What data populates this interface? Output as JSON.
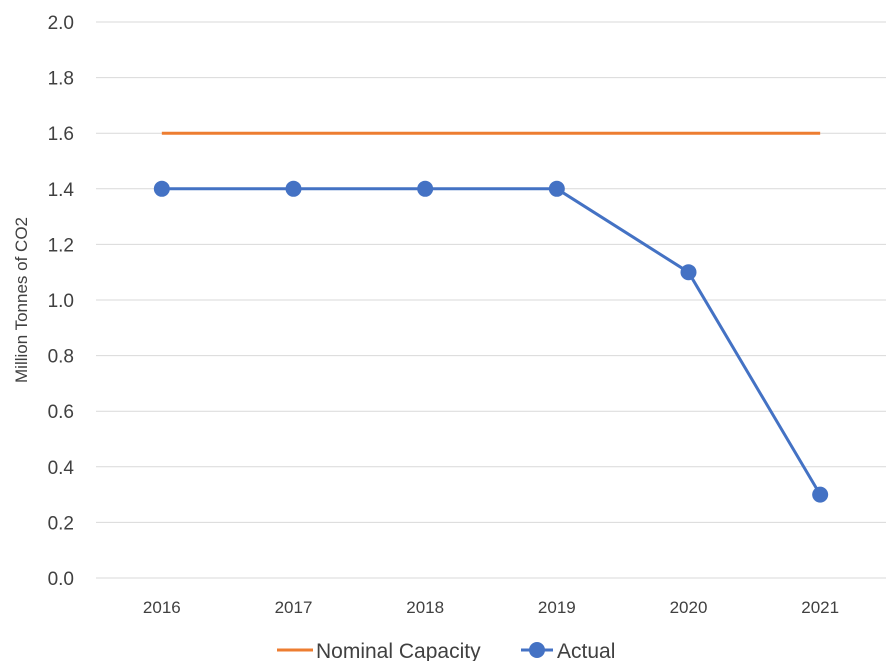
{
  "chart_data": {
    "type": "line",
    "title": "",
    "xlabel": "",
    "ylabel": "Million Tonnes of CO2",
    "categories": [
      "2016",
      "2017",
      "2018",
      "2019",
      "2020",
      "2021"
    ],
    "ylim": [
      0,
      2.0
    ],
    "yticks": [
      "0.0",
      "0.2",
      "0.4",
      "0.6",
      "0.8",
      "1.0",
      "1.2",
      "1.4",
      "1.6",
      "1.8",
      "2.0"
    ],
    "grid": true,
    "legend_position": "bottom",
    "series": [
      {
        "name": "Nominal Capacity",
        "values": [
          1.6,
          1.6,
          1.6,
          1.6,
          1.6,
          1.6
        ],
        "color": "#ed7d31",
        "markers": false
      },
      {
        "name": "Actual",
        "values": [
          1.4,
          1.4,
          1.4,
          1.4,
          1.1,
          0.3
        ],
        "color": "#4472c4",
        "markers": true
      }
    ]
  }
}
